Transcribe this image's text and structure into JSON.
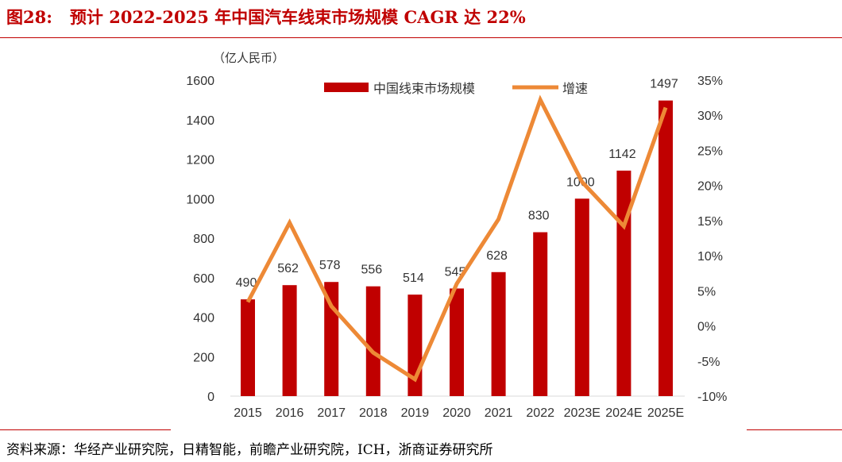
{
  "title": "图28:   预计 2022-2025 年中国汽车线束市场规模 CAGR 达 22%",
  "source": "资料来源：华经产业研究院，日精智能，前瞻产业研究院，ICH，浙商证券研究所",
  "colors": {
    "bar": "#c00000",
    "line": "#ed8936",
    "accent": "#c00000"
  },
  "chart_data": {
    "type": "bar+line",
    "unit_label": "（亿人民币）",
    "categories": [
      "2015",
      "2016",
      "2017",
      "2018",
      "2019",
      "2020",
      "2021",
      "2022",
      "2023E",
      "2024E",
      "2025E"
    ],
    "series": [
      {
        "name": "中国线束市场规模",
        "type": "bar",
        "axis": "left",
        "values": [
          490,
          562,
          578,
          556,
          514,
          545,
          628,
          830,
          1000,
          1142,
          1497
        ]
      },
      {
        "name": "增速",
        "type": "line",
        "axis": "right",
        "values": [
          3.4,
          14.7,
          2.8,
          -3.8,
          -7.6,
          6.0,
          15.2,
          32.2,
          20.5,
          14.2,
          31.1
        ]
      }
    ],
    "left_axis": {
      "range": [
        0,
        1600
      ],
      "ticks": [
        0,
        200,
        400,
        600,
        800,
        1000,
        1200,
        1400,
        1600
      ]
    },
    "right_axis": {
      "range": [
        -10,
        35
      ],
      "ticks": [
        "-10%",
        "-5%",
        "0%",
        "5%",
        "10%",
        "15%",
        "20%",
        "25%",
        "30%",
        "35%"
      ]
    },
    "legend": "top-center",
    "grid": false
  }
}
